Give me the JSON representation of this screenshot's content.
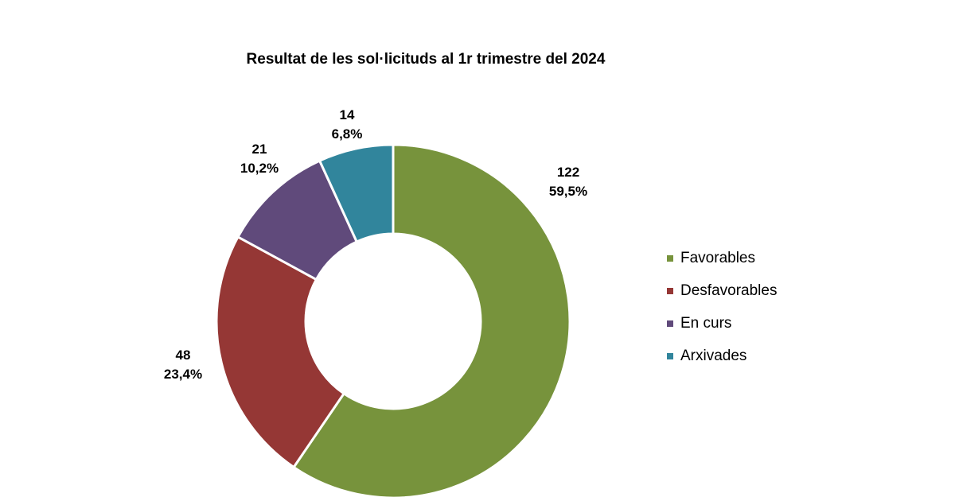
{
  "chart_data": {
    "type": "pie",
    "title": "Resultat de les sol·licituds al 1r trimestre del 2024",
    "donut": true,
    "legend_position": "right",
    "slices": [
      {
        "name": "Favorables",
        "value": 122,
        "percent_label": "59,5%",
        "color": "#77933C"
      },
      {
        "name": "Desfavorables",
        "value": 48,
        "percent_label": "23,4%",
        "color": "#953735"
      },
      {
        "name": "En curs",
        "value": 21,
        "percent_label": "10,2%",
        "color": "#604A7B"
      },
      {
        "name": "Arxivades",
        "value": 14,
        "percent_label": "6,8%",
        "color": "#31859C"
      }
    ]
  }
}
